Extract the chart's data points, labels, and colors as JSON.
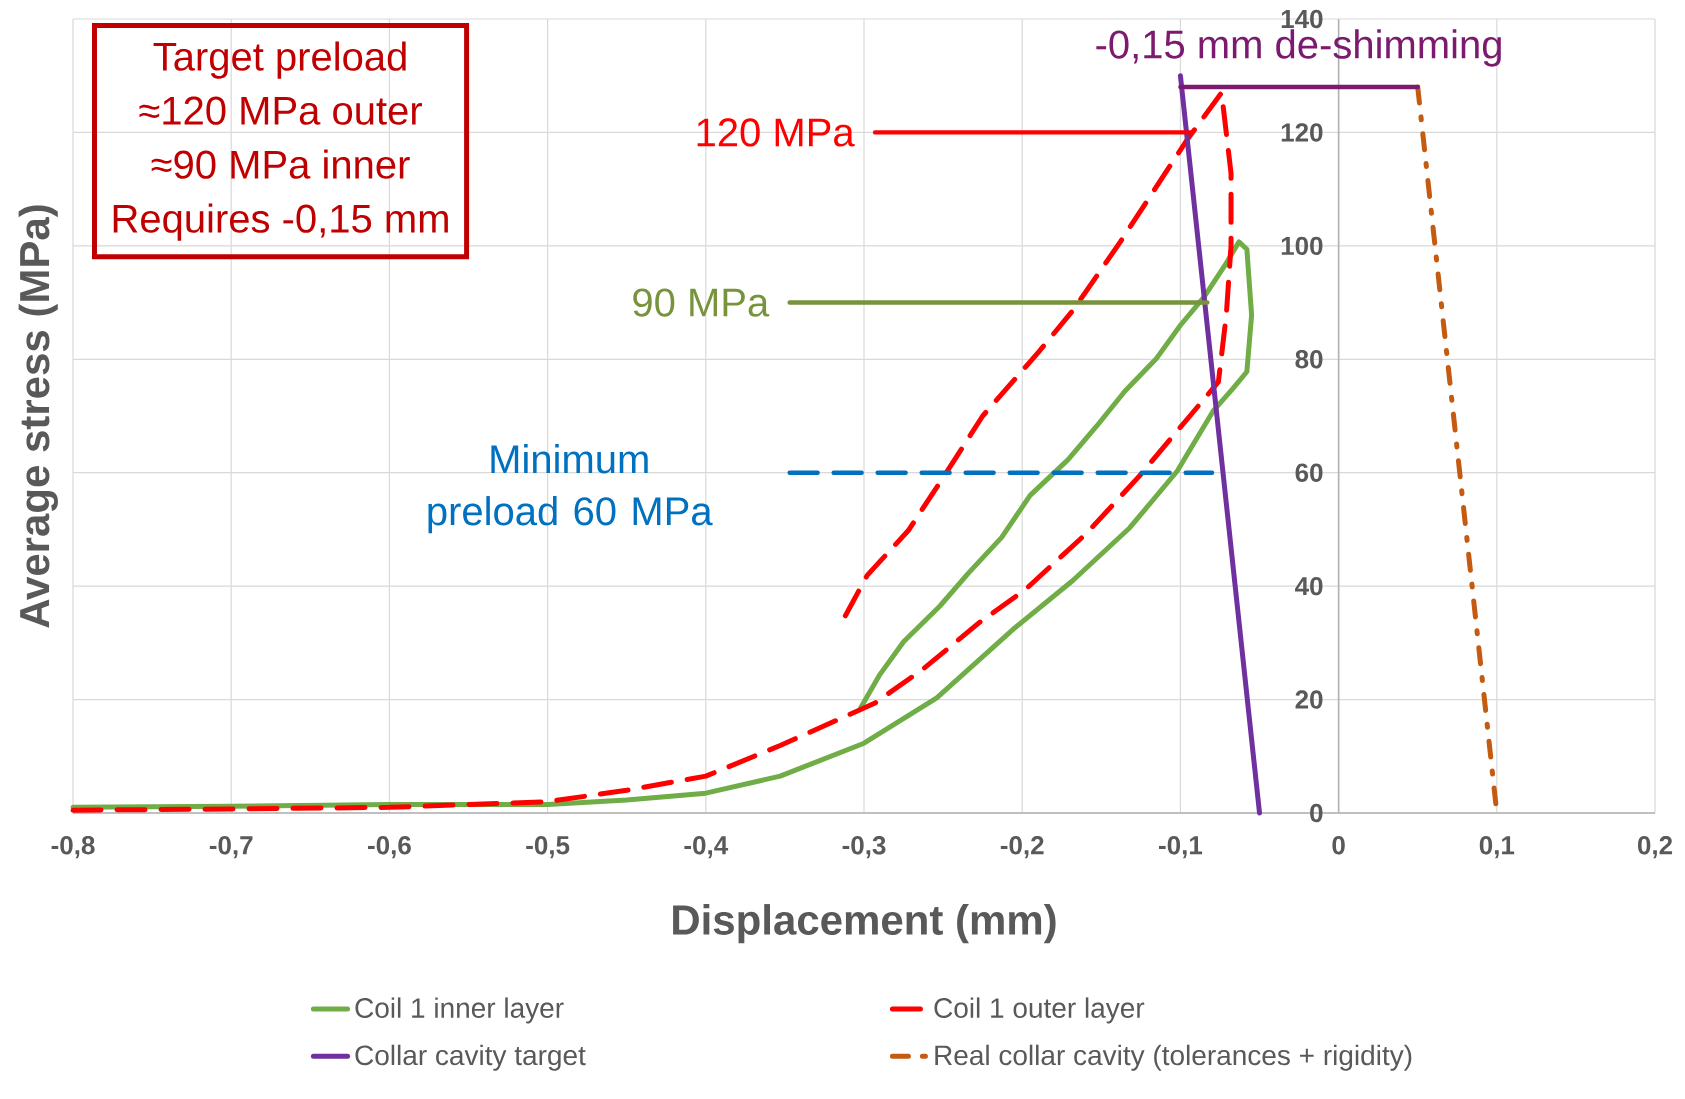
{
  "chart_data": {
    "type": "line",
    "xlabel": "Displacement (mm)",
    "ylabel": "Average stress (MPa)",
    "xlim": [
      -0.8,
      0.2
    ],
    "ylim": [
      0,
      140
    ],
    "xticks": [
      {
        "value": -0.8,
        "label": "-0,8"
      },
      {
        "value": -0.7,
        "label": "-0,7"
      },
      {
        "value": -0.6,
        "label": "-0,6"
      },
      {
        "value": -0.5,
        "label": "-0,5"
      },
      {
        "value": -0.4,
        "label": "-0,4"
      },
      {
        "value": -0.3,
        "label": "-0,3"
      },
      {
        "value": -0.2,
        "label": "-0,2"
      },
      {
        "value": -0.1,
        "label": "-0,1"
      },
      {
        "value": 0,
        "label": "0"
      },
      {
        "value": 0.1,
        "label": "0,1"
      },
      {
        "value": 0.2,
        "label": "0,2"
      }
    ],
    "yticks": [
      0,
      20,
      40,
      60,
      80,
      100,
      120,
      140
    ],
    "grid": true,
    "legend": "bottom",
    "marker": "none",
    "series": [
      {
        "name": "Coil 1 inner layer",
        "color": "#70ad47",
        "line_style": "solid",
        "x": [
          -0.8,
          -0.7,
          -0.6,
          -0.5,
          -0.45,
          -0.4,
          -0.353,
          -0.3,
          -0.254,
          -0.204,
          -0.168,
          -0.132,
          -0.102,
          -0.079,
          -0.067,
          -0.058,
          -0.055,
          -0.058,
          -0.063,
          -0.072,
          -0.085,
          -0.1,
          -0.115,
          -0.135,
          -0.153,
          -0.171,
          -0.195,
          -0.213,
          -0.234,
          -0.252,
          -0.275,
          -0.29,
          -0.302
        ],
        "values": [
          1,
          1.2,
          1.5,
          1.5,
          2.3,
          3.5,
          6.5,
          12.3,
          20.3,
          32.8,
          41,
          50.3,
          60.3,
          71,
          74.8,
          77.8,
          87.8,
          99.4,
          100.7,
          96.5,
          91,
          86,
          80.2,
          74.4,
          68.2,
          62.3,
          56,
          48.6,
          42.3,
          36.5,
          30.2,
          24.4,
          18.6
        ]
      },
      {
        "name": "Coil 1 outer layer",
        "color": "#ff0000",
        "line_style": "dashed",
        "x": [
          -0.8,
          -0.7,
          -0.6,
          -0.5,
          -0.45,
          -0.4,
          -0.353,
          -0.293,
          -0.263,
          -0.227,
          -0.198,
          -0.159,
          -0.126,
          -0.094,
          -0.076,
          -0.071,
          -0.068,
          -0.068,
          -0.074,
          -0.096,
          -0.138,
          -0.168,
          -0.189,
          -0.225,
          -0.248,
          -0.272,
          -0.298,
          -0.3125
        ],
        "values": [
          0.5,
          0.7,
          1,
          2,
          4,
          6.5,
          11.9,
          19.4,
          25.3,
          33.6,
          39.4,
          49.4,
          59.4,
          70,
          76,
          87.8,
          100,
          112.8,
          127,
          118.6,
          100.7,
          88.6,
          81.5,
          70,
          60,
          49.8,
          41.9,
          34.4
        ]
      },
      {
        "name": "Collar cavity target",
        "color": "#7030a0",
        "line_style": "solid",
        "x": [
          -0.1,
          -0.05
        ],
        "values": [
          130,
          0
        ]
      },
      {
        "name": "Real collar cavity (tolerances + rigidity)",
        "color": "#c55a11",
        "line_style": "dashdot",
        "x": [
          0.05,
          0.1
        ],
        "values": [
          128,
          0
        ]
      },
      {
        "color": "#ff0000",
        "line_style": "solid",
        "x": [
          -0.293,
          -0.093
        ],
        "values": [
          120,
          120
        ]
      },
      {
        "color": "#77933c",
        "line_style": "solid",
        "x": [
          -0.347,
          -0.083
        ],
        "values": [
          90,
          90
        ]
      },
      {
        "color": "#0070c0",
        "line_style": "dashed",
        "x": [
          -0.347,
          -0.08
        ],
        "values": [
          60,
          60
        ]
      },
      {
        "color": "#7b1a6e",
        "line_style": "solid",
        "x": [
          0.05,
          -0.1
        ],
        "values": [
          128,
          128
        ]
      }
    ],
    "annotations": [
      "Target preload",
      "≈120 MPa outer",
      "≈90 MPa inner",
      "Requires -0,15 mm",
      {
        "text": "120 MPa",
        "x": -0.293,
        "y": 120
      },
      {
        "text": "90 MPa",
        "x": -0.347,
        "y": 90
      },
      {
        "text": "Minimum preload 60 MPa",
        "x": -0.347,
        "y": 60
      },
      {
        "text": "-0,15 mm de-shimming",
        "x": -0.025,
        "y": 128
      }
    ]
  }
}
